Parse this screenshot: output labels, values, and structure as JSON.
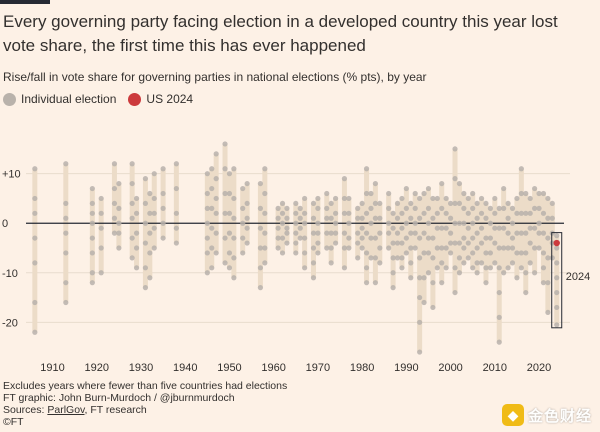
{
  "header": {
    "title": "Every governing party facing election in a developed country this year lost vote share, the first time this has ever happened",
    "subtitle": "Rise/fall in vote share for governing parties in national elections (% pts), by year"
  },
  "legend": {
    "individual_label": "Individual election",
    "us_label": "US 2024"
  },
  "footer": {
    "note1": "Excludes years where fewer than five countries had elections",
    "note2": "FT graphic: John Burn-Murdoch / @jburnmurdoch",
    "sources_prefix": "Sources: ",
    "sources_link": "ParlGov",
    "sources_suffix": ", FT research",
    "copyright": "©FT"
  },
  "watermark": {
    "text": "金色财经"
  },
  "colors": {
    "background": "#fdf1e6",
    "range_bar": "#ecdcc8",
    "dot": "#b9b2ab",
    "us_dot": "#cc3a3c",
    "zero_line": "#262a33",
    "grid": "#e8dccd",
    "text": "#33302e"
  },
  "chart_data": {
    "type": "scatter",
    "title": "Every governing party facing election in a developed country this year lost vote share, the first time this has ever happened",
    "ylabel": "Rise/fall in vote share for governing parties in national elections (% pts)",
    "xlabel": "",
    "xlim": [
      1904,
      2027
    ],
    "ylim": [
      -27,
      17
    ],
    "x_ticks": [
      1910,
      1920,
      1930,
      1940,
      1950,
      1960,
      1970,
      1980,
      1990,
      2000,
      2010,
      2020
    ],
    "y_ticks": [
      10,
      0,
      -10,
      -20
    ],
    "y_tick_labels": [
      "+10",
      "0",
      "-10",
      "-20"
    ],
    "highlight": {
      "year": 2024,
      "label": "2024",
      "us_value": -4,
      "range": [
        -20.5,
        -2.5
      ]
    },
    "years": [
      {
        "year": 1906,
        "min": -22,
        "max": 11,
        "values": [
          11,
          5,
          2,
          -3,
          -8,
          -16,
          -22
        ]
      },
      {
        "year": 1913,
        "min": -16,
        "max": 12,
        "values": [
          12,
          4,
          1,
          -2,
          -6,
          -12,
          -16
        ]
      },
      {
        "year": 1919,
        "min": -12,
        "max": 7,
        "values": [
          7,
          4,
          2,
          0,
          -3,
          -6,
          -10,
          -12
        ]
      },
      {
        "year": 1921,
        "min": -10,
        "max": 5,
        "values": [
          5,
          2,
          -1,
          -5,
          -10
        ]
      },
      {
        "year": 1924,
        "min": -2,
        "max": 12,
        "values": [
          12,
          7,
          4,
          1,
          -2
        ]
      },
      {
        "year": 1925,
        "min": -5,
        "max": 8,
        "values": [
          8,
          3,
          0,
          -2,
          -5
        ]
      },
      {
        "year": 1928,
        "min": -7,
        "max": 12,
        "values": [
          12,
          8,
          4,
          1,
          -3,
          -7
        ]
      },
      {
        "year": 1929,
        "min": -9,
        "max": 5,
        "values": [
          5,
          2,
          -2,
          -5,
          -9
        ]
      },
      {
        "year": 1931,
        "min": -13,
        "max": 9,
        "values": [
          9,
          4,
          0,
          -4,
          -9,
          -13
        ]
      },
      {
        "year": 1932,
        "min": -11,
        "max": 6,
        "values": [
          6,
          2,
          -2,
          -6,
          -11
        ]
      },
      {
        "year": 1933,
        "min": -5,
        "max": 10,
        "values": [
          10,
          5,
          2,
          -1,
          -5
        ]
      },
      {
        "year": 1935,
        "min": -3,
        "max": 11,
        "values": [
          11,
          6,
          3,
          0,
          -3
        ]
      },
      {
        "year": 1938,
        "min": -4,
        "max": 12,
        "values": [
          12,
          7,
          2,
          -1,
          -4
        ]
      },
      {
        "year": 1945,
        "min": -10,
        "max": 10,
        "values": [
          10,
          6,
          3,
          0,
          -3,
          -6,
          -10
        ]
      },
      {
        "year": 1946,
        "min": -9,
        "max": 11,
        "values": [
          11,
          7,
          3,
          -1,
          -5,
          -9
        ]
      },
      {
        "year": 1947,
        "min": -6,
        "max": 14,
        "values": [
          14,
          9,
          5,
          2,
          -2,
          -6
        ]
      },
      {
        "year": 1949,
        "min": -8,
        "max": 16,
        "values": [
          16,
          11,
          6,
          2,
          -3,
          -8
        ]
      },
      {
        "year": 1950,
        "min": -9,
        "max": 10,
        "values": [
          10,
          6,
          2,
          -2,
          -6,
          -9
        ]
      },
      {
        "year": 1951,
        "min": -11,
        "max": 11,
        "values": [
          11,
          5,
          1,
          -3,
          -7,
          -11
        ]
      },
      {
        "year": 1953,
        "min": -6,
        "max": 7,
        "values": [
          7,
          3,
          0,
          -3,
          -6
        ]
      },
      {
        "year": 1954,
        "min": -4,
        "max": 8,
        "values": [
          8,
          4,
          1,
          -1,
          -4
        ]
      },
      {
        "year": 1957,
        "min": -13,
        "max": 8,
        "values": [
          8,
          3,
          -1,
          -5,
          -9,
          -13
        ]
      },
      {
        "year": 1958,
        "min": -8,
        "max": 11,
        "values": [
          11,
          6,
          2,
          -2,
          -5,
          -8
        ]
      },
      {
        "year": 1961,
        "min": -5,
        "max": 3,
        "values": [
          3,
          1,
          -1,
          -3,
          -5
        ]
      },
      {
        "year": 1962,
        "min": -6,
        "max": 4,
        "values": [
          4,
          2,
          0,
          -3,
          -6
        ]
      },
      {
        "year": 1963,
        "min": -4,
        "max": 3,
        "values": [
          3,
          1,
          -1,
          -2,
          -4
        ]
      },
      {
        "year": 1965,
        "min": -6,
        "max": 4,
        "values": [
          4,
          2,
          0,
          -2,
          -4,
          -6
        ]
      },
      {
        "year": 1966,
        "min": -3,
        "max": 3,
        "values": [
          3,
          1,
          -1,
          -3
        ]
      },
      {
        "year": 1967,
        "min": -9,
        "max": 5,
        "values": [
          5,
          2,
          0,
          -3,
          -6,
          -9
        ]
      },
      {
        "year": 1969,
        "min": -11,
        "max": 4,
        "values": [
          4,
          1,
          -2,
          -5,
          -8,
          -11
        ]
      },
      {
        "year": 1970,
        "min": -6,
        "max": 5,
        "values": [
          5,
          3,
          0,
          -2,
          -4,
          -6
        ]
      },
      {
        "year": 1972,
        "min": -5,
        "max": 6,
        "values": [
          6,
          3,
          1,
          -2,
          -5
        ]
      },
      {
        "year": 1973,
        "min": -8,
        "max": 4,
        "values": [
          4,
          1,
          -2,
          -5,
          -8
        ]
      },
      {
        "year": 1974,
        "min": -4,
        "max": 5,
        "values": [
          5,
          2,
          0,
          -2,
          -4
        ]
      },
      {
        "year": 1976,
        "min": -9,
        "max": 9,
        "values": [
          9,
          5,
          2,
          -2,
          -5,
          -9
        ]
      },
      {
        "year": 1977,
        "min": -5,
        "max": 5,
        "values": [
          5,
          2,
          0,
          -3,
          -5
        ]
      },
      {
        "year": 1979,
        "min": -7,
        "max": 3,
        "values": [
          3,
          1,
          -2,
          -4,
          -7
        ]
      },
      {
        "year": 1980,
        "min": -5,
        "max": 4,
        "values": [
          4,
          1,
          -1,
          -3,
          -5
        ]
      },
      {
        "year": 1981,
        "min": -12,
        "max": 11,
        "values": [
          11,
          6,
          2,
          -2,
          -6,
          -9,
          -12
        ]
      },
      {
        "year": 1982,
        "min": -7,
        "max": 6,
        "values": [
          6,
          3,
          0,
          -3,
          -7
        ]
      },
      {
        "year": 1983,
        "min": -12,
        "max": 8,
        "values": [
          8,
          4,
          1,
          -3,
          -7,
          -12
        ]
      },
      {
        "year": 1984,
        "min": -8,
        "max": 4,
        "values": [
          4,
          1,
          -2,
          -5,
          -8
        ]
      },
      {
        "year": 1986,
        "min": -5,
        "max": 6,
        "values": [
          6,
          3,
          0,
          -2,
          -5
        ]
      },
      {
        "year": 1987,
        "min": -13,
        "max": 2,
        "values": [
          2,
          -1,
          -4,
          -7,
          -10,
          -13
        ]
      },
      {
        "year": 1988,
        "min": -7,
        "max": 4,
        "values": [
          4,
          1,
          -2,
          -4,
          -7
        ]
      },
      {
        "year": 1989,
        "min": -9,
        "max": 5,
        "values": [
          5,
          2,
          -1,
          -4,
          -7,
          -9
        ]
      },
      {
        "year": 1990,
        "min": -6,
        "max": 7,
        "values": [
          7,
          3,
          0,
          -3,
          -6
        ]
      },
      {
        "year": 1991,
        "min": -11,
        "max": 4,
        "values": [
          4,
          1,
          -2,
          -5,
          -8,
          -11
        ]
      },
      {
        "year": 1992,
        "min": -5,
        "max": 6,
        "values": [
          6,
          3,
          0,
          -2,
          -5
        ]
      },
      {
        "year": 1993,
        "min": -26,
        "max": 5,
        "values": [
          5,
          1,
          -3,
          -7,
          -11,
          -15,
          -20,
          -26
        ]
      },
      {
        "year": 1994,
        "min": -16,
        "max": 6,
        "values": [
          6,
          2,
          -2,
          -6,
          -11,
          -16
        ]
      },
      {
        "year": 1995,
        "min": -10,
        "max": 7,
        "values": [
          7,
          3,
          0,
          -3,
          -6,
          -10
        ]
      },
      {
        "year": 1996,
        "min": -17,
        "max": 5,
        "values": [
          5,
          1,
          -3,
          -7,
          -12,
          -17
        ]
      },
      {
        "year": 1997,
        "min": -9,
        "max": 5,
        "values": [
          5,
          2,
          -1,
          -5,
          -9
        ]
      },
      {
        "year": 1998,
        "min": -12,
        "max": 8,
        "values": [
          8,
          3,
          -1,
          -5,
          -8,
          -12
        ]
      },
      {
        "year": 1999,
        "min": -9,
        "max": 5,
        "values": [
          5,
          2,
          -1,
          -5,
          -9
        ]
      },
      {
        "year": 2000,
        "min": -6,
        "max": 4,
        "values": [
          4,
          1,
          -2,
          -4,
          -6
        ]
      },
      {
        "year": 2001,
        "min": -14,
        "max": 15,
        "values": [
          15,
          9,
          4,
          0,
          -4,
          -9,
          -14
        ]
      },
      {
        "year": 2002,
        "min": -10,
        "max": 8,
        "values": [
          8,
          4,
          0,
          -4,
          -7,
          -10
        ]
      },
      {
        "year": 2003,
        "min": -8,
        "max": 6,
        "values": [
          6,
          3,
          0,
          -3,
          -5,
          -8
        ]
      },
      {
        "year": 2004,
        "min": -7,
        "max": 5,
        "values": [
          5,
          2,
          -1,
          -4,
          -7
        ]
      },
      {
        "year": 2005,
        "min": -9,
        "max": 6,
        "values": [
          6,
          3,
          0,
          -3,
          -6,
          -9
        ]
      },
      {
        "year": 2006,
        "min": -10,
        "max": 4,
        "values": [
          4,
          1,
          -2,
          -5,
          -8,
          -10
        ]
      },
      {
        "year": 2007,
        "min": -8,
        "max": 5,
        "values": [
          5,
          2,
          -1,
          -4,
          -8
        ]
      },
      {
        "year": 2008,
        "min": -12,
        "max": 4,
        "values": [
          4,
          1,
          -3,
          -6,
          -9,
          -12
        ]
      },
      {
        "year": 2009,
        "min": -9,
        "max": 3,
        "values": [
          3,
          0,
          -3,
          -6,
          -9
        ]
      },
      {
        "year": 2010,
        "min": -8,
        "max": 5,
        "values": [
          5,
          2,
          -1,
          -4,
          -8
        ]
      },
      {
        "year": 2011,
        "min": -24,
        "max": 3,
        "values": [
          3,
          -1,
          -5,
          -9,
          -14,
          -19,
          -24
        ]
      },
      {
        "year": 2012,
        "min": -10,
        "max": 7,
        "values": [
          7,
          3,
          -1,
          -5,
          -10
        ]
      },
      {
        "year": 2013,
        "min": -9,
        "max": 4,
        "values": [
          4,
          1,
          -2,
          -5,
          -9
        ]
      },
      {
        "year": 2014,
        "min": -8,
        "max": 3,
        "values": [
          3,
          0,
          -3,
          -5,
          -8
        ]
      },
      {
        "year": 2015,
        "min": -11,
        "max": 5,
        "values": [
          5,
          2,
          -2,
          -6,
          -11
        ]
      },
      {
        "year": 2016,
        "min": -9,
        "max": 11,
        "values": [
          11,
          6,
          2,
          -2,
          -6,
          -9
        ]
      },
      {
        "year": 2017,
        "min": -14,
        "max": 6,
        "values": [
          6,
          2,
          -2,
          -6,
          -10,
          -14
        ]
      },
      {
        "year": 2018,
        "min": -8,
        "max": 5,
        "values": [
          5,
          2,
          -1,
          -4,
          -8
        ]
      },
      {
        "year": 2019,
        "min": -10,
        "max": 7,
        "values": [
          7,
          3,
          -1,
          -5,
          -10
        ]
      },
      {
        "year": 2020,
        "min": -5,
        "max": 6,
        "values": [
          6,
          3,
          0,
          -2,
          -5
        ]
      },
      {
        "year": 2021,
        "min": -12,
        "max": 6,
        "values": [
          6,
          2,
          -2,
          -6,
          -9,
          -12
        ]
      },
      {
        "year": 2022,
        "min": -18,
        "max": 5,
        "values": [
          5,
          1,
          -3,
          -7,
          -12,
          -18
        ]
      },
      {
        "year": 2023,
        "min": -7,
        "max": 4,
        "values": [
          4,
          1,
          -2,
          -4,
          -7
        ]
      },
      {
        "year": 2024,
        "min": -20.5,
        "max": -2.5,
        "values": [
          -2.5,
          -5,
          -8,
          -11,
          -14,
          -17,
          -20.5
        ]
      }
    ]
  }
}
